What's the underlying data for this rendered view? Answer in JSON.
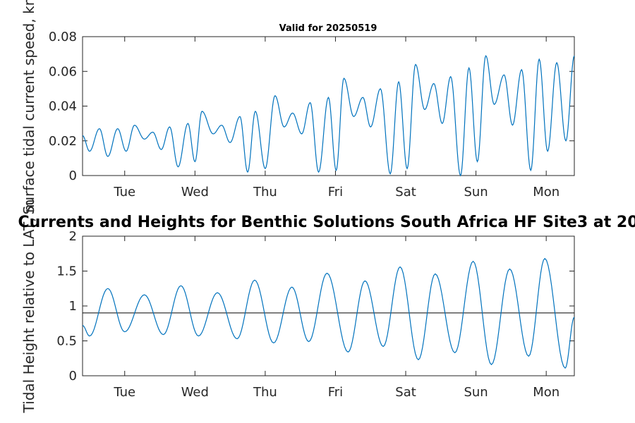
{
  "chart_data": [
    {
      "type": "line",
      "title": "Valid for 20250519",
      "ylabel": "Surface tidal current speed, kn",
      "ylim": [
        0,
        0.08
      ],
      "yticks": [
        0,
        0.02,
        0.04,
        0.06,
        0.08
      ],
      "ytick_labels": [
        "0",
        "0.02",
        "0.04",
        "0.06",
        "0.08"
      ],
      "xlim": [
        0,
        7.0
      ],
      "xticks": [
        0.6,
        1.6,
        2.6,
        3.6,
        4.6,
        5.6,
        6.6
      ],
      "xtick_labels": [
        "Tue",
        "Wed",
        "Thu",
        "Fri",
        "Sat",
        "Sun",
        "Mon"
      ],
      "line_color": "#0072BD",
      "series": [
        {
          "x": [
            0.0,
            0.1,
            0.24,
            0.36,
            0.5,
            0.62,
            0.74,
            0.88,
            1.0,
            1.12,
            1.24,
            1.36,
            1.5,
            1.6,
            1.7,
            1.86,
            1.98,
            2.1,
            2.24,
            2.35,
            2.46,
            2.6,
            2.74,
            2.87,
            2.99,
            3.12,
            3.24,
            3.36,
            3.5,
            3.61,
            3.72,
            3.86,
            3.99,
            4.1,
            4.24,
            4.38,
            4.5,
            4.62,
            4.74,
            4.87,
            5.0,
            5.12,
            5.24,
            5.38,
            5.5,
            5.62,
            5.74,
            5.86,
            6.0,
            6.12,
            6.25,
            6.38,
            6.5,
            6.62,
            6.75,
            6.88,
            7.0
          ],
          "y": [
            0.023,
            0.014,
            0.027,
            0.011,
            0.027,
            0.014,
            0.029,
            0.021,
            0.025,
            0.015,
            0.028,
            0.005,
            0.03,
            0.008,
            0.037,
            0.024,
            0.029,
            0.019,
            0.034,
            0.002,
            0.037,
            0.004,
            0.046,
            0.028,
            0.036,
            0.024,
            0.042,
            0.002,
            0.045,
            0.003,
            0.056,
            0.034,
            0.045,
            0.028,
            0.05,
            0.001,
            0.054,
            0.004,
            0.064,
            0.038,
            0.053,
            0.03,
            0.057,
            0.0,
            0.062,
            0.008,
            0.069,
            0.041,
            0.058,
            0.029,
            0.061,
            0.003,
            0.067,
            0.014,
            0.065,
            0.02,
            0.069
          ]
        }
      ]
    },
    {
      "type": "line",
      "title": "Currents and Heights for Benthic Solutions South Africa HF Site3 at 20",
      "ylabel": "Tidal Height relative to LAT, m",
      "ylim": [
        0,
        2
      ],
      "yticks": [
        0,
        0.5,
        1,
        1.5,
        2
      ],
      "ytick_labels": [
        "0",
        "0.5",
        "1",
        "1.5",
        "2"
      ],
      "xlim": [
        0,
        7.0
      ],
      "xticks": [
        0.6,
        1.6,
        2.6,
        3.6,
        4.6,
        5.6,
        6.6
      ],
      "xtick_labels": [
        "Tue",
        "Wed",
        "Thu",
        "Fri",
        "Sat",
        "Sun",
        "Mon"
      ],
      "reference_line": 0.9,
      "line_color": "#0072BD",
      "series": [
        {
          "x": [
            0.0,
            0.1,
            0.36,
            0.6,
            0.88,
            1.15,
            1.4,
            1.65,
            1.92,
            2.2,
            2.45,
            2.72,
            2.98,
            3.22,
            3.48,
            3.78,
            4.02,
            4.28,
            4.52,
            4.78,
            5.02,
            5.3,
            5.56,
            5.82,
            6.08,
            6.35,
            6.58,
            6.87,
            7.0
          ],
          "y": [
            0.72,
            0.57,
            1.25,
            0.63,
            1.16,
            0.59,
            1.29,
            0.57,
            1.19,
            0.53,
            1.37,
            0.47,
            1.27,
            0.49,
            1.47,
            0.34,
            1.36,
            0.42,
            1.56,
            0.23,
            1.46,
            0.33,
            1.64,
            0.16,
            1.53,
            0.28,
            1.68,
            0.11,
            0.84
          ]
        }
      ]
    }
  ]
}
